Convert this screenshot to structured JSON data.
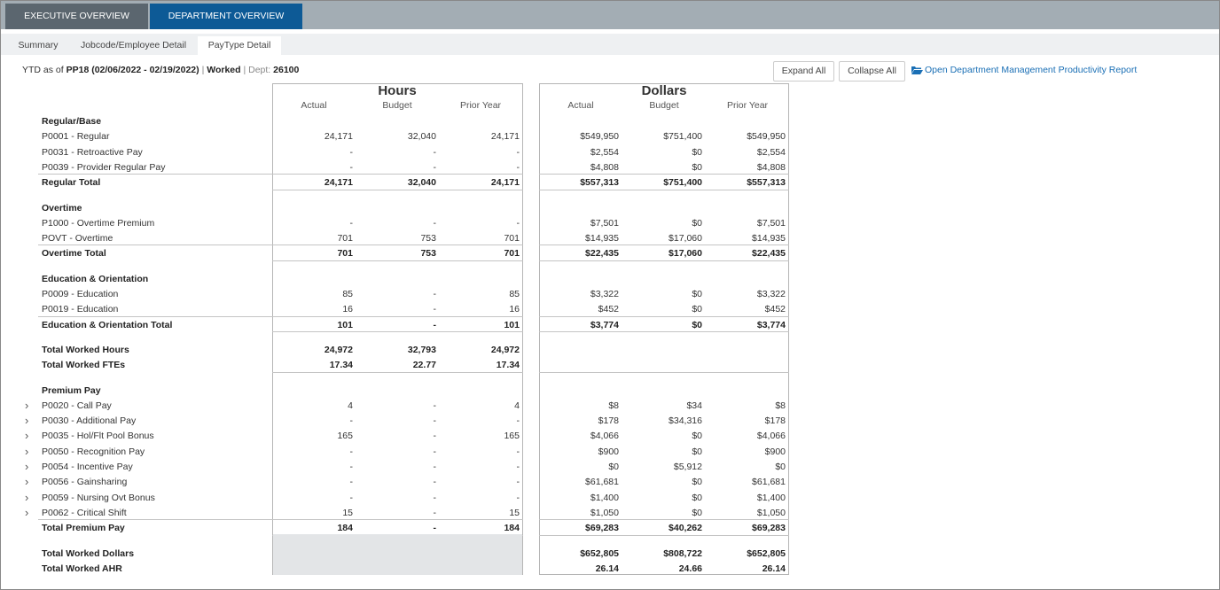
{
  "tabs": [
    "EXECUTIVE OVERVIEW",
    "DEPARTMENT OVERVIEW"
  ],
  "subtabs": [
    "Summary",
    "Jobcode/Employee Detail",
    "PayType Detail"
  ],
  "info": {
    "prefix": "YTD as of",
    "period": "PP18 (02/06/2022 - 02/19/2022)",
    "sep1": "|",
    "status": "Worked",
    "sep2": "| Dept:",
    "dept": "26100"
  },
  "buttons": [
    "Expand All",
    "Collapse All"
  ],
  "link": "Open Department Management Productivity Report",
  "hours": {
    "title": "Hours",
    "columns": [
      "Actual",
      "Budget",
      "Prior Year"
    ]
  },
  "dollars": {
    "title": "Dollars",
    "columns": [
      "Actual",
      "Budget",
      "Prior Year"
    ]
  },
  "blocks": [
    {
      "title": "Regular/Base",
      "items": [
        {
          "label": "P0001 - Regular",
          "hours": [
            "24,171",
            "32,040",
            "24,171"
          ],
          "dollars": [
            "$549,950",
            "$751,400",
            "$549,950"
          ]
        },
        {
          "label": "P0031 - Retroactive Pay",
          "hours": [
            "-",
            "-",
            "-"
          ],
          "dollars": [
            "$2,554",
            "$0",
            "$2,554"
          ]
        },
        {
          "label": "P0039 - Provider Regular Pay",
          "hours": [
            "-",
            "-",
            "-"
          ],
          "dollars": [
            "$4,808",
            "$0",
            "$4,808"
          ]
        }
      ],
      "total": {
        "label": "Regular Total",
        "hours": [
          "24,171",
          "32,040",
          "24,171"
        ],
        "dollars": [
          "$557,313",
          "$751,400",
          "$557,313"
        ]
      }
    },
    {
      "title": "Overtime",
      "items": [
        {
          "label": "P1000 - Overtime Premium",
          "hours": [
            "-",
            "-",
            "-"
          ],
          "dollars": [
            "$7,501",
            "$0",
            "$7,501"
          ]
        },
        {
          "label": "POVT - Overtime",
          "hours": [
            "701",
            "753",
            "701"
          ],
          "dollars": [
            "$14,935",
            "$17,060",
            "$14,935"
          ]
        }
      ],
      "total": {
        "label": "Overtime Total",
        "hours": [
          "701",
          "753",
          "701"
        ],
        "dollars": [
          "$22,435",
          "$17,060",
          "$22,435"
        ]
      }
    },
    {
      "title": "Education & Orientation",
      "items": [
        {
          "label": "P0009 - Education",
          "hours": [
            "85",
            "-",
            "85"
          ],
          "dollars": [
            "$3,322",
            "$0",
            "$3,322"
          ]
        },
        {
          "label": "P0019 - Education",
          "hours": [
            "16",
            "-",
            "16"
          ],
          "dollars": [
            "$452",
            "$0",
            "$452"
          ]
        }
      ],
      "total": {
        "label": "Education & Orientation Total",
        "hours": [
          "101",
          "-",
          "101"
        ],
        "dollars": [
          "$3,774",
          "$0",
          "$3,774"
        ]
      }
    },
    {
      "summary": [
        {
          "label": "Total Worked Hours",
          "hours": [
            "24,972",
            "32,793",
            "24,972"
          ]
        },
        {
          "label": "Total Worked FTEs",
          "hours": [
            "17.34",
            "22.77",
            "17.34"
          ]
        }
      ]
    },
    {
      "title": "Premium Pay",
      "items": [
        {
          "label": "P0020 - Call Pay",
          "expandable": true,
          "hours": [
            "4",
            "-",
            "4"
          ],
          "dollars": [
            "$8",
            "$34",
            "$8"
          ]
        },
        {
          "label": "P0030 - Additional Pay",
          "expandable": true,
          "hours": [
            "-",
            "-",
            "-"
          ],
          "dollars": [
            "$178",
            "$34,316",
            "$178"
          ]
        },
        {
          "label": "P0035 - Hol/Flt Pool Bonus",
          "expandable": true,
          "hours": [
            "165",
            "-",
            "165"
          ],
          "dollars": [
            "$4,066",
            "$0",
            "$4,066"
          ]
        },
        {
          "label": "P0050 - Recognition Pay",
          "expandable": true,
          "hours": [
            "-",
            "-",
            "-"
          ],
          "dollars": [
            "$900",
            "$0",
            "$900"
          ]
        },
        {
          "label": "P0054 - Incentive Pay",
          "expandable": true,
          "hours": [
            "-",
            "-",
            "-"
          ],
          "dollars": [
            "$0",
            "$5,912",
            "$0"
          ]
        },
        {
          "label": "P0056 - Gainsharing",
          "expandable": true,
          "hours": [
            "-",
            "-",
            "-"
          ],
          "dollars": [
            "$61,681",
            "$0",
            "$61,681"
          ]
        },
        {
          "label": "P0059 - Nursing Ovt Bonus",
          "expandable": true,
          "hours": [
            "-",
            "-",
            "-"
          ],
          "dollars": [
            "$1,400",
            "$0",
            "$1,400"
          ]
        },
        {
          "label": "P0062 - Critical Shift",
          "expandable": true,
          "hours": [
            "15",
            "-",
            "15"
          ],
          "dollars": [
            "$1,050",
            "$0",
            "$1,050"
          ]
        }
      ],
      "total": {
        "label": "Total Premium Pay",
        "hours": [
          "184",
          "-",
          "184"
        ],
        "dollars": [
          "$69,283",
          "$40,262",
          "$69,283"
        ]
      }
    },
    {
      "summary": [
        {
          "label": "Total Worked Dollars",
          "dollars": [
            "$652,805",
            "$808,722",
            "$652,805"
          ]
        },
        {
          "label": "Total Worked AHR",
          "dollars": [
            "26.14",
            "24.66",
            "26.14"
          ]
        }
      ]
    }
  ]
}
